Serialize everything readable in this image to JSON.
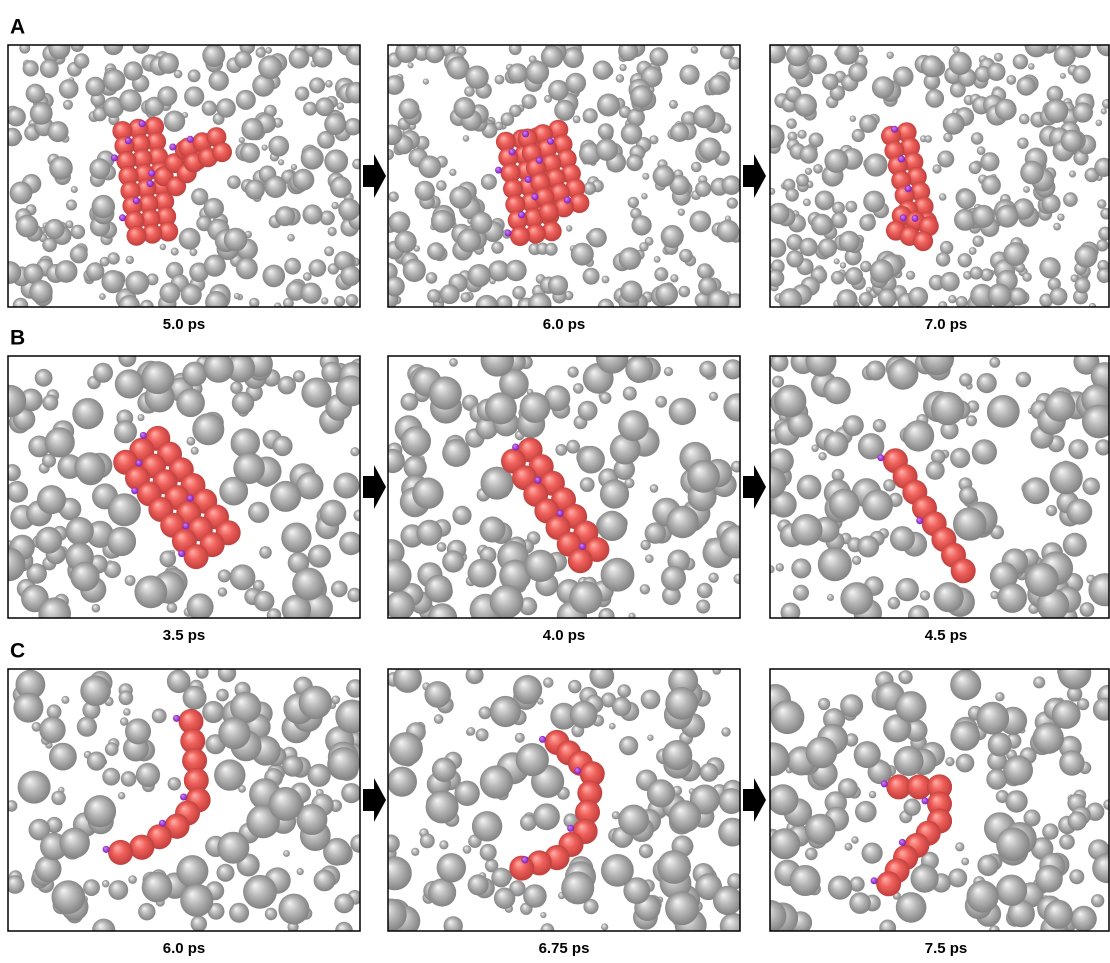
{
  "panels": [
    {
      "label": "A",
      "times": [
        "5.0 ps",
        "6.0 ps",
        "7.0 ps"
      ]
    },
    {
      "label": "B",
      "times": [
        "3.5 ps",
        "4.0 ps",
        "4.5 ps"
      ]
    },
    {
      "label": "C",
      "times": [
        "6.0 ps",
        "6.75 ps",
        "7.5 ps"
      ]
    }
  ]
}
